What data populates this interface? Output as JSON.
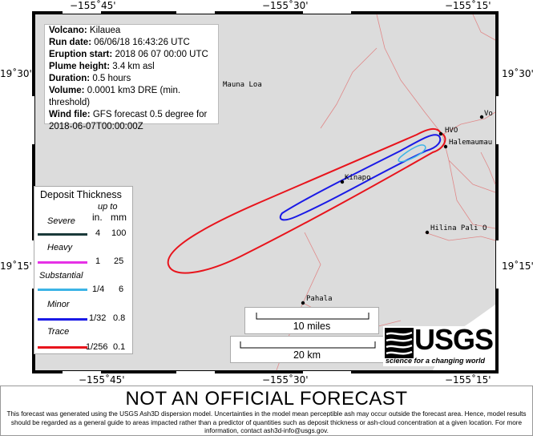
{
  "map": {
    "colors": {
      "land": "#dcdcdc",
      "roads": "#e08888",
      "trace": "#e8141c",
      "minor": "#1a1ae6",
      "substantial": "#3cb4e6",
      "heavy": "#e632e6",
      "severe": "#1a3a3a"
    },
    "lon_labels_top": [
      "−155˚45'",
      "−155˚30'",
      "−155˚15'"
    ],
    "lon_labels_bottom": [
      "−155˚45'",
      "−155˚30'",
      "−155˚15'"
    ],
    "lat_labels_left": [
      "19˚30'",
      "19˚15'"
    ],
    "lat_labels_right": [
      "19˚30'",
      "19˚15'"
    ]
  },
  "info": {
    "volcano_label": "Volcano:",
    "volcano": "Kilauea",
    "run_date_label": "Run date:",
    "run_date": "06/06/18 16:43:26 UTC",
    "eruption_start_label": "Eruption start:",
    "eruption_start": "2018 06 07 00:00 UTC",
    "plume_height_label": "Plume height:",
    "plume_height": "3.4  km asl",
    "duration_label": "Duration:",
    "duration": "0.5  hours",
    "volume_label": "Volume:",
    "volume": "0.0001 km3 DRE (min.",
    "volume_cont": "threshold)",
    "wind_file_label": "Wind file:",
    "wind_file": "GFS forecast 0.5 degree for",
    "wind_file_cont": "2018-06-07T00:00:00Z"
  },
  "legend": {
    "title": "Deposit Thickness",
    "upto": "up to",
    "unit_in": "in.",
    "unit_mm": "mm",
    "rows": [
      {
        "name": "Severe",
        "in": "4",
        "mm": "100"
      },
      {
        "name": "Heavy",
        "in": "1",
        "mm": "25"
      },
      {
        "name": "Substantial",
        "in": "1/4",
        "mm": "6"
      },
      {
        "name": "Minor",
        "in": "1/32",
        "mm": "0.8"
      },
      {
        "name": "Trace",
        "in": "1/256",
        "mm": "0.1"
      }
    ]
  },
  "places": {
    "mauna_loa": "Mauna Loa",
    "vo": "Vo",
    "hvo": "HVO",
    "halemaumau": "Halemaumau",
    "kinapo": "Kinapo",
    "hilina": "Hilina Pali O",
    "pahala": "Pahala"
  },
  "scale": {
    "miles": "10 miles",
    "km": "20 km"
  },
  "usgs": {
    "name": "USGS",
    "tagline": "science for a changing world"
  },
  "disclaimer": {
    "heading": "NOT AN OFFICIAL FORECAST",
    "text": "This forecast was generated using the USGS Ash3D dispersion model. Uncertainties in the model mean perceptible ash may occur outside the forecast area. Hence, model results should be regarded as a general guide to areas impacted rather than a predictor of quantities such as deposit thickness or ash-cloud concentration at a given location.  For more information, contact ash3d-info@usgs.gov."
  }
}
